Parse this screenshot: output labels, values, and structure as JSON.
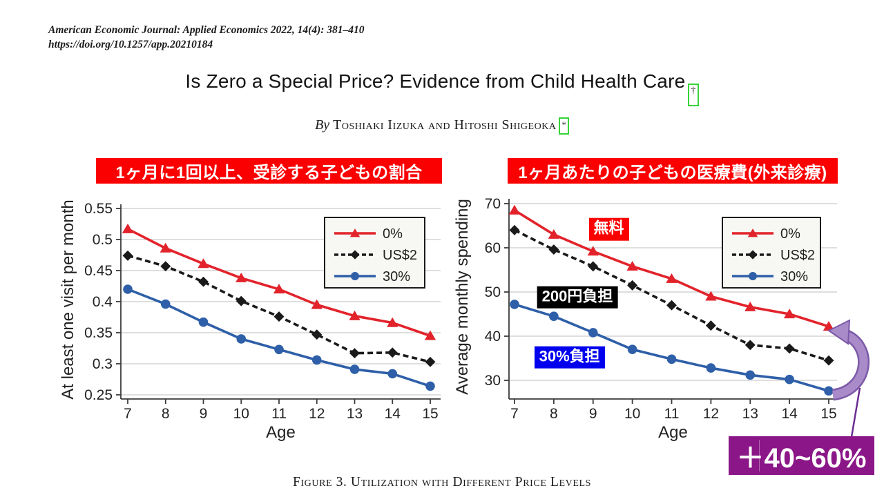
{
  "slide": {
    "background": "#ffffff"
  },
  "header": {
    "journal_line": "American Economic Journal: Applied Economics 2022, 14(4): 381–410",
    "doi_line": "https://doi.org/10.1257/app.20210184"
  },
  "title": {
    "text": "Is Zero a Special Price? Evidence from Child Health Care",
    "note_marker": "†"
  },
  "byline": {
    "by": "By",
    "authors": "Toshiaki Iizuka and Hitoshi Shigeoka",
    "note_marker": "*"
  },
  "caption": "Figure 3. Utilization with Different Price Levels",
  "highlight": {
    "text": "＋40~60%",
    "bg": "#8b1687",
    "color": "#ffffff"
  },
  "colors": {
    "banner_bg": "#fb0000",
    "line_0pct": "#e2232b",
    "line_us2": "#1a1a1a",
    "line_30pct": "#2e5fa8",
    "arrow_fill": "#a98bc9",
    "arrow_outline": "#7c59a8",
    "grid": "#c9c9c9"
  },
  "chart_data": [
    {
      "type": "line",
      "banner": "1ヶ月に1回以上、受診する子どもの割合",
      "xlabel": "Age",
      "ylabel": "At least one visit per month",
      "x": [
        7,
        8,
        9,
        10,
        11,
        12,
        13,
        14,
        15
      ],
      "ylim": [
        0.24,
        0.56
      ],
      "yticks": [
        0.25,
        0.3,
        0.35,
        0.4,
        0.45,
        0.5,
        0.55
      ],
      "ytick_labels": [
        "0.25",
        "0.3",
        "0.35",
        "0.4",
        "0.45",
        "0.5",
        "0.55"
      ],
      "grid": true,
      "legend_position": "upper right",
      "series": [
        {
          "name": "0%",
          "color": "#e2232b",
          "marker": "triangle",
          "linestyle": "solid",
          "values": [
            0.517,
            0.486,
            0.461,
            0.438,
            0.42,
            0.395,
            0.377,
            0.366,
            0.345
          ]
        },
        {
          "name": "US$2",
          "color": "#1a1a1a",
          "marker": "diamond",
          "linestyle": "dashed",
          "values": [
            0.474,
            0.457,
            0.432,
            0.401,
            0.376,
            0.347,
            0.317,
            0.318,
            0.303
          ]
        },
        {
          "name": "30%",
          "color": "#2e5fa8",
          "marker": "circle",
          "linestyle": "solid",
          "values": [
            0.42,
            0.396,
            0.367,
            0.34,
            0.323,
            0.306,
            0.291,
            0.284,
            0.264
          ]
        }
      ]
    },
    {
      "type": "line",
      "banner": "1ヶ月あたりの子どもの医療費(外来診療)",
      "xlabel": "Age",
      "ylabel": "Average monthly spending",
      "x": [
        7,
        8,
        9,
        10,
        11,
        12,
        13,
        14,
        15
      ],
      "ylim": [
        26,
        71
      ],
      "yticks": [
        30,
        40,
        50,
        60,
        70
      ],
      "ytick_labels": [
        "30",
        "40",
        "50",
        "60",
        "70"
      ],
      "grid": true,
      "legend_position": "upper right",
      "series": [
        {
          "name": "0%",
          "color": "#e2232b",
          "marker": "triangle",
          "linestyle": "solid",
          "values": [
            68.5,
            63.0,
            59.2,
            55.8,
            53.0,
            49.0,
            46.6,
            45.0,
            42.2
          ]
        },
        {
          "name": "US$2",
          "color": "#1a1a1a",
          "marker": "diamond",
          "linestyle": "dashed",
          "values": [
            64.0,
            59.6,
            55.8,
            51.5,
            47.0,
            42.4,
            38.0,
            37.2,
            34.5
          ]
        },
        {
          "name": "30%",
          "color": "#2e5fa8",
          "marker": "circle",
          "linestyle": "solid",
          "values": [
            47.2,
            44.5,
            40.8,
            37.0,
            34.8,
            32.8,
            31.2,
            30.2,
            27.6
          ]
        }
      ],
      "annotations": [
        {
          "text": "無料",
          "bg": "#fb0000",
          "color": "#ffffff",
          "x": 9.4,
          "y": 64.2
        },
        {
          "text": "200円負担",
          "bg": "#000000",
          "color": "#ffffff",
          "x": 8.6,
          "y": 48.8
        },
        {
          "text": "30%負担",
          "bg": "#0000ee",
          "color": "#ffffff",
          "x": 8.4,
          "y": 35.2
        }
      ]
    }
  ]
}
